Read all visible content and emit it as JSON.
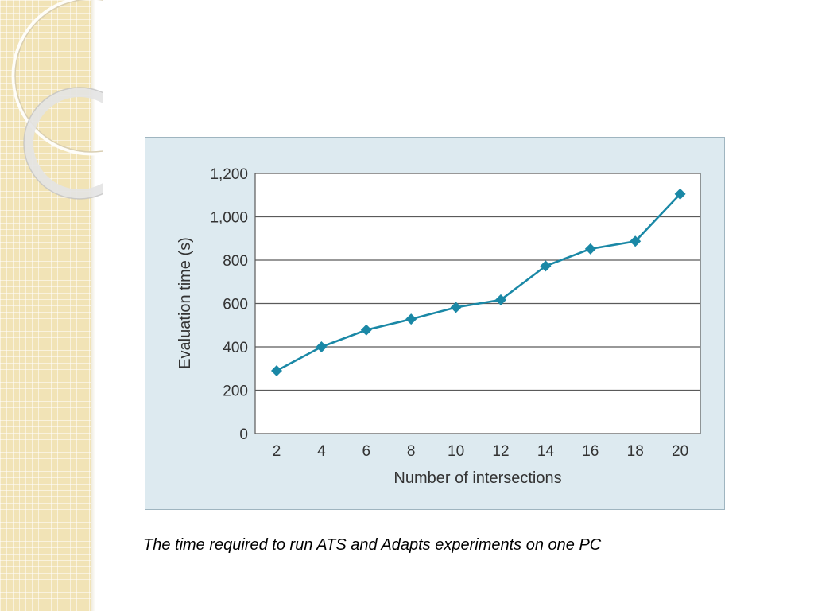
{
  "slide": {
    "caption": "The time required to run ATS and Adapts experiments on one PC"
  },
  "colors": {
    "series": "#1a88a6",
    "panel_background": "#ddeaf0",
    "plot_background": "#ffffff",
    "gridline": "#5a5a5a",
    "side_strip": "#f1e3b6"
  },
  "chart_data": {
    "type": "line",
    "title": "",
    "xlabel": "Number of intersections",
    "ylabel": "Evaluation time (s)",
    "x": [
      2,
      4,
      6,
      8,
      10,
      12,
      14,
      16,
      18,
      20
    ],
    "series": [
      {
        "values": [
          290,
          400,
          478,
          528,
          582,
          617,
          773,
          852,
          887,
          1105
        ],
        "marker": "diamond"
      }
    ],
    "x_ticks": [
      "2",
      "4",
      "6",
      "8",
      "10",
      "12",
      "14",
      "16",
      "18",
      "20"
    ],
    "y_ticks": [
      "0",
      "200",
      "400",
      "600",
      "800",
      "1,000",
      "1,200"
    ],
    "y_tick_values": [
      0,
      200,
      400,
      600,
      800,
      1000,
      1200
    ],
    "ylim": [
      0,
      1200
    ],
    "grid": "horizontal",
    "legend": "none"
  }
}
